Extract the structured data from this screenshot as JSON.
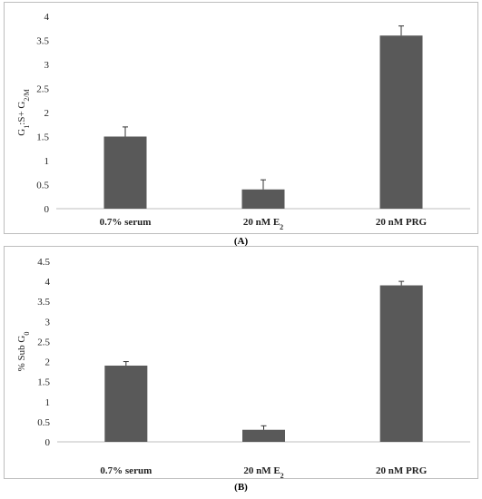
{
  "chart_data": [
    {
      "type": "bar",
      "panel_label": "(A)",
      "ylabel": "G1:S+ G2/M",
      "ylim": [
        0,
        4
      ],
      "yticks": [
        "0",
        "0.5",
        "1",
        "1.5",
        "2",
        "2.5",
        "3",
        "3.5",
        "4"
      ],
      "grid": false,
      "categories": [
        "0.7% serum",
        "20 nM E2",
        "20 nM PRG"
      ],
      "values": [
        1.5,
        0.4,
        3.6
      ],
      "errors": [
        0.2,
        0.2,
        0.2
      ],
      "bar_color": "#595959"
    },
    {
      "type": "bar",
      "panel_label": "(B)",
      "ylabel": "% Sub G0",
      "ylim": [
        0,
        4.5
      ],
      "yticks": [
        "0",
        "0.5",
        "1",
        "1.5",
        "2",
        "2.5",
        "3",
        "3.5",
        "4",
        "4.5"
      ],
      "grid": false,
      "categories": [
        "0.7% serum",
        "20 nM E2",
        "20 nM PRG"
      ],
      "values": [
        1.9,
        0.3,
        3.9
      ],
      "errors": [
        0.1,
        0.1,
        0.1
      ],
      "bar_color": "#595959"
    }
  ]
}
